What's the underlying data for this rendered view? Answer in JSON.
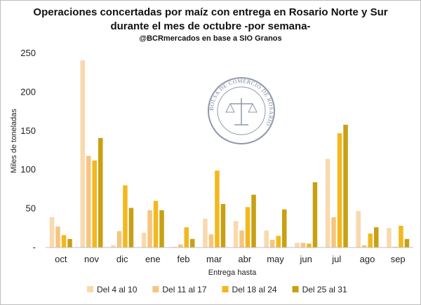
{
  "chart_data": {
    "type": "bar",
    "title": "Operaciones concertadas por maíz con entrega en Rosario Norte y Sur",
    "title_line2": "durante el mes de octubre -por semana-",
    "subtitle": "@BCRmercados en base a SIO Granos",
    "xlabel": "Entrega hasta",
    "ylabel": "Miles de toneladas",
    "ylim": [
      0,
      250
    ],
    "yticks": [
      0,
      50,
      100,
      150,
      200,
      250
    ],
    "ytick_labels": [
      "-",
      "50",
      "100",
      "150",
      "200",
      "250"
    ],
    "grid": false,
    "legend_position": "bottom",
    "categories": [
      "oct",
      "nov",
      "dic",
      "ene",
      "feb",
      "mar",
      "abr",
      "may",
      "jun",
      "jul",
      "ago",
      "sep"
    ],
    "series": [
      {
        "name": "Del 4 al 10",
        "color": "#F9D9AD",
        "values": [
          39,
          241,
          3,
          19,
          1,
          37,
          34,
          22,
          6,
          114,
          47,
          25
        ]
      },
      {
        "name": "Del 11 al 17",
        "color": "#F7C47F",
        "values": [
          27,
          118,
          21,
          48,
          4,
          17,
          22,
          10,
          6,
          39,
          3,
          1
        ]
      },
      {
        "name": "Del 18 al 24",
        "color": "#F2B81E",
        "values": [
          16,
          112,
          80,
          60,
          26,
          99,
          52,
          15,
          5,
          147,
          18,
          28
        ]
      },
      {
        "name": "Del 25 al 31",
        "color": "#C9A013",
        "values": [
          11,
          141,
          51,
          48,
          11,
          56,
          68,
          49,
          84,
          158,
          26,
          11
        ]
      }
    ],
    "watermark": "BOLSA DE COMERCIO DE ROSARIO"
  }
}
